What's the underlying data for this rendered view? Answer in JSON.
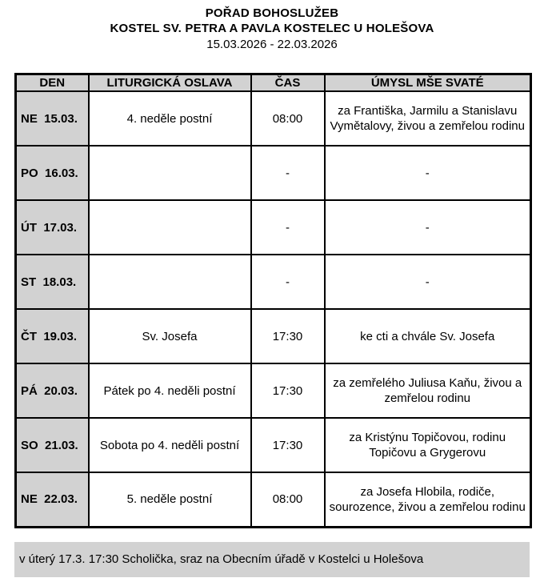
{
  "header": {
    "title": "POŘAD BOHOSLUŽEB",
    "subtitle": "KOSTEL SV. PETRA A PAVLA KOSTELEC U HOLEŠOVA",
    "date_range": "15.03.2026 - 22.03.2026"
  },
  "table": {
    "columns": {
      "day": "DEN",
      "celebration": "LITURGICKÁ OSLAVA",
      "time": "ČAS",
      "intention": "ÚMYSL MŠE SVATÉ"
    },
    "rows": [
      {
        "day": "NE  15.03.",
        "celebration": "4. neděle postní",
        "time": "08:00",
        "intention": "za Františka, Jarmilu a Stanislavu Vymětalovy, živou a zemřelou rodinu"
      },
      {
        "day": "PO  16.03.",
        "celebration": "",
        "time": "-",
        "intention": "-"
      },
      {
        "day": "ÚT  17.03.",
        "celebration": "",
        "time": "-",
        "intention": "-"
      },
      {
        "day": "ST  18.03.",
        "celebration": "",
        "time": "-",
        "intention": "-"
      },
      {
        "day": "ČT  19.03.",
        "celebration": "Sv. Josefa",
        "time": "17:30",
        "intention": "ke cti a chvále Sv. Josefa"
      },
      {
        "day": "PÁ  20.03.",
        "celebration": "Pátek po 4. neděli postní",
        "time": "17:30",
        "intention": "za zemřelého Juliusa Kaňu, živou a zemřelou rodinu"
      },
      {
        "day": "SO  21.03.",
        "celebration": "Sobota po 4. neděli postní",
        "time": "17:30",
        "intention": "za Kristýnu Topičovou, rodinu Topičovu a Grygerovu"
      },
      {
        "day": "NE  22.03.",
        "celebration": "5. neděle postní",
        "time": "08:00",
        "intention": "za Josefa Hlobila, rodiče, sourozence, živou a zemřelou rodinu"
      }
    ]
  },
  "footer": {
    "note": "v úterý 17.3. 17:30 Scholička, sraz na Obecním úřadě v Kostelci u Holešova"
  },
  "colors": {
    "cell_grey": "#d2d2d2",
    "border_black": "#000000",
    "page_background": "#ffffff"
  }
}
